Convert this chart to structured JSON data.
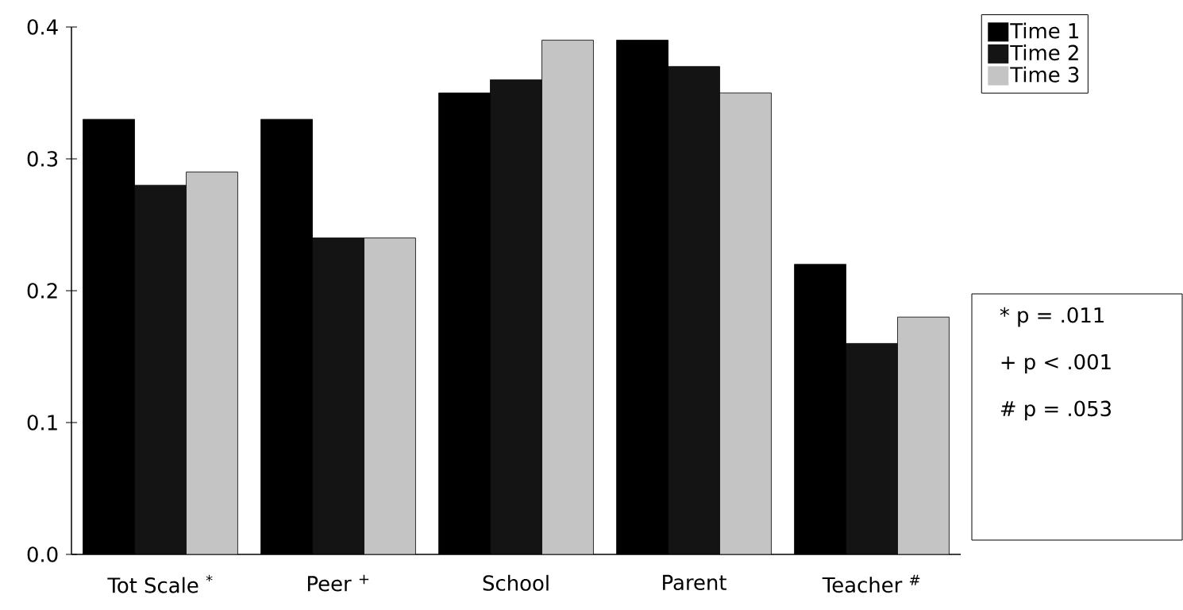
{
  "chart_data": {
    "type": "bar",
    "categories": [
      "Tot Scale $^{*}$",
      "Peer $^{+}$",
      "School",
      "Parent",
      "Teacher $^{#}$"
    ],
    "series": [
      {
        "name": "Time 1",
        "color": "#000000",
        "values": [
          0.33,
          0.33,
          0.35,
          0.39,
          0.22
        ]
      },
      {
        "name": "Time 2",
        "color": "#141414",
        "values": [
          0.28,
          0.24,
          0.36,
          0.37,
          0.16
        ]
      },
      {
        "name": "Time 3",
        "color": "#c4c4c4",
        "values": [
          0.29,
          0.24,
          0.39,
          0.35,
          0.18
        ]
      }
    ],
    "ylim": [
      0,
      0.4
    ],
    "yticks": [
      {
        "value": 0,
        "label": "0.0"
      },
      0.1,
      0.2,
      0.3,
      0.4
    ],
    "legend": "top right",
    "annotations": [
      "* p = .011",
      "+ p < .001",
      "# p = .053"
    ]
  }
}
